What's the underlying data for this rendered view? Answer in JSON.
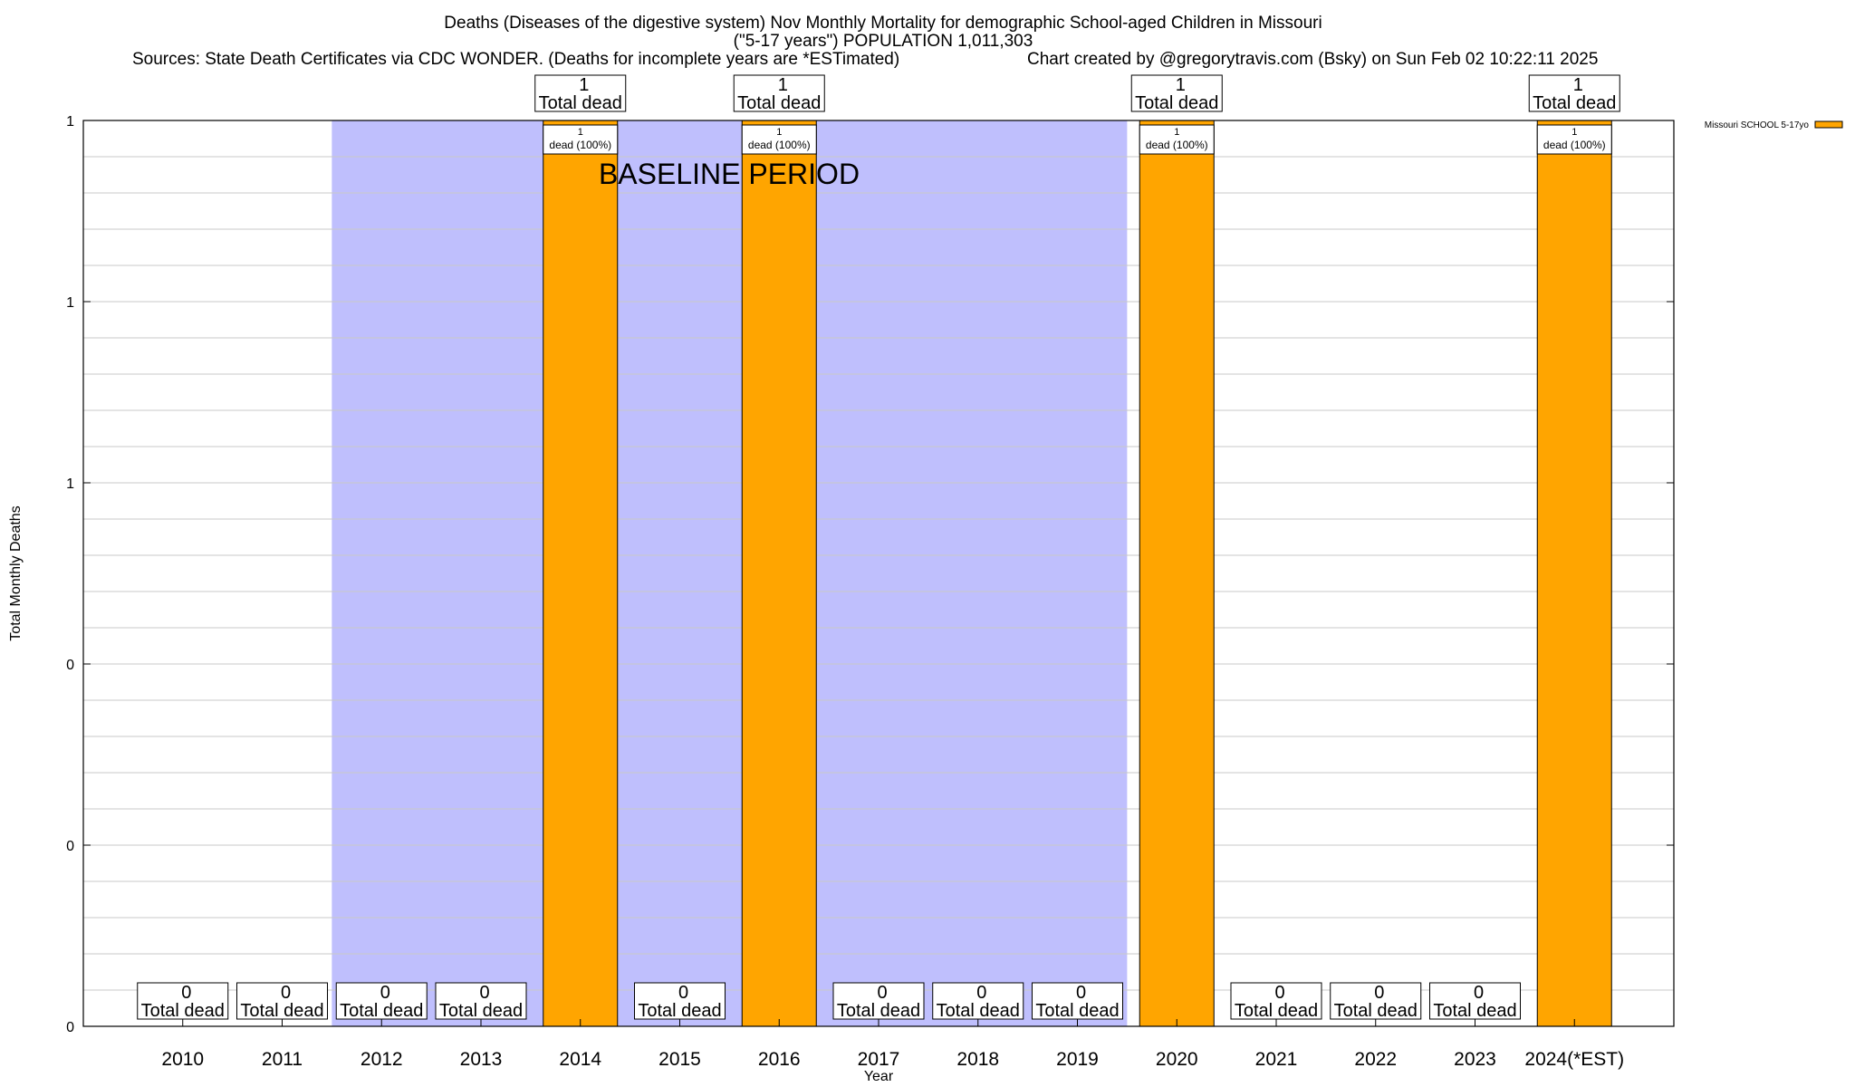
{
  "chart_data": {
    "type": "bar",
    "title_lines": [
      "Deaths (Diseases of the digestive system) Nov Monthly Mortality for demographic School-aged Children in Missouri",
      "(\"5-17 years\") POPULATION 1,011,303"
    ],
    "sources": "Sources: State Death Certificates via CDC WONDER. (Deaths for incomplete years are *ESTimated)",
    "credit": "Chart created by @gregorytravis.com (Bsky) on Sun Feb 02 10:22:11 2025",
    "xlabel": "Year",
    "ylabel": "Total Monthly Deaths",
    "categories": [
      "2010",
      "2011",
      "2012",
      "2013",
      "2014",
      "2015",
      "2016",
      "2017",
      "2018",
      "2019",
      "2020",
      "2021",
      "2022",
      "2023",
      "2024(*EST)"
    ],
    "values": [
      0,
      0,
      0,
      0,
      1,
      0,
      1,
      0,
      0,
      0,
      1,
      0,
      0,
      0,
      1
    ],
    "total_labels": [
      "0",
      "0",
      "0",
      "0",
      "1",
      "0",
      "1",
      "0",
      "0",
      "0",
      "1",
      "0",
      "0",
      "0",
      "1"
    ],
    "total_suffix": "Total dead",
    "segment_labels": [
      {
        "index": 4,
        "count": "1",
        "text": "dead (100%)"
      },
      {
        "index": 6,
        "count": "1",
        "text": "dead (100%)"
      },
      {
        "index": 10,
        "count": "1",
        "text": "dead (100%)"
      },
      {
        "index": 14,
        "count": "1",
        "text": "dead (100%)"
      }
    ],
    "yticks": [
      {
        "value": 0,
        "label": "0"
      },
      {
        "value": 0.2,
        "label": "0"
      },
      {
        "value": 0.4,
        "label": "0"
      },
      {
        "value": 0.6,
        "label": "1"
      },
      {
        "value": 0.8,
        "label": "1"
      },
      {
        "value": 1.0,
        "label": "1"
      }
    ],
    "ylim": [
      0,
      1
    ],
    "grid": true,
    "baseline_period": {
      "start_index": 2,
      "end_index": 9,
      "label": "BASELINE PERIOD",
      "color": "#bfbffd"
    },
    "series": [
      {
        "name": "Missouri SCHOOL 5-17yo",
        "color": "#ffa500"
      }
    ],
    "legend_position": "top-right"
  }
}
